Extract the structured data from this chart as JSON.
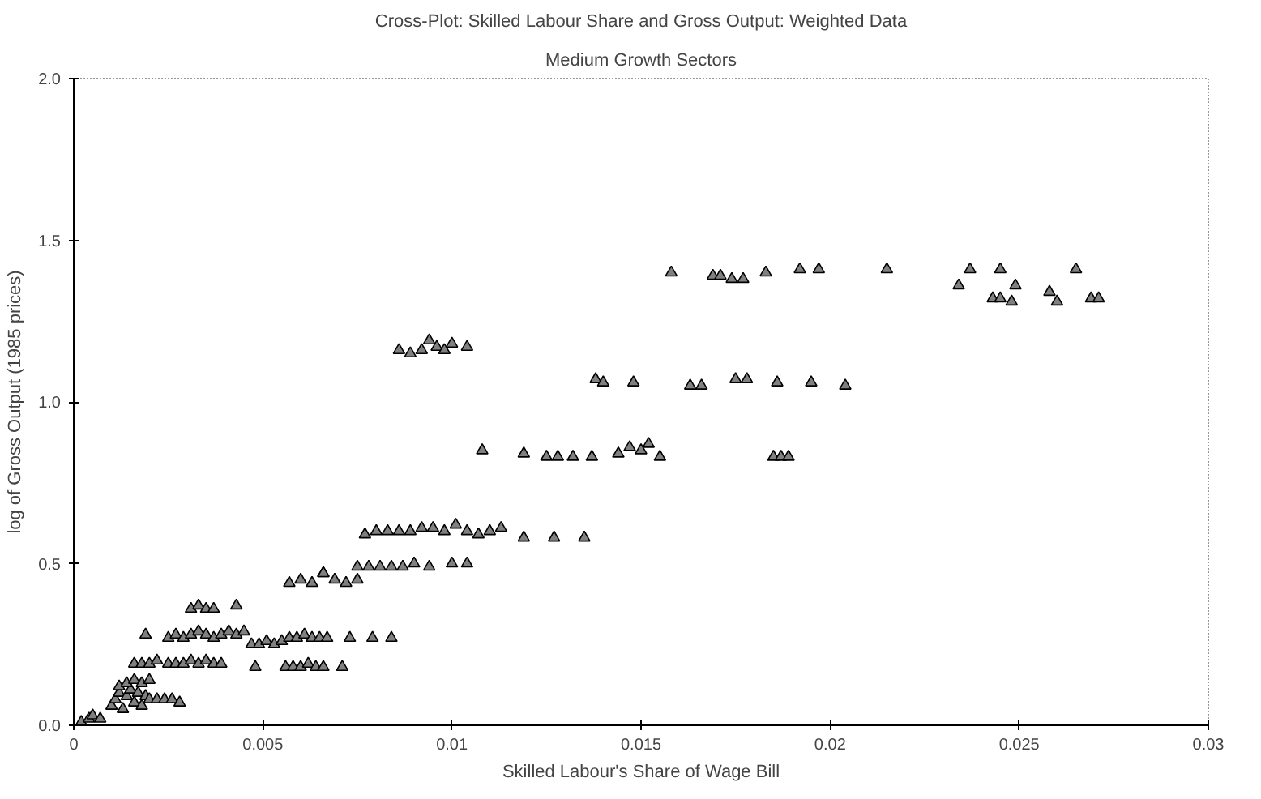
{
  "chart_data": {
    "type": "scatter",
    "title": "Cross-Plot: Skilled Labour Share and Gross Output: Weighted Data",
    "subtitle": "Medium Growth Sectors",
    "xlabel": "Skilled Labour's Share of Wage Bill",
    "ylabel": "log of Gross Output (1985 prices)",
    "xlim": [
      0,
      0.03
    ],
    "ylim": [
      0,
      2.0
    ],
    "xticks": [
      0,
      0.005,
      0.01,
      0.015,
      0.02,
      0.025,
      0.03
    ],
    "yticks": [
      {
        "value": 0,
        "label": "0.0"
      },
      {
        "value": 0.5,
        "label": "0.5"
      },
      {
        "value": 1.0,
        "label": "1.0"
      },
      {
        "value": 1.5,
        "label": "1.5"
      },
      {
        "value": 2.0,
        "label": "2.0"
      }
    ],
    "grid": false,
    "marker": "triangle",
    "series": [
      {
        "color": "#808080",
        "x": [
          0.0002,
          0.0004,
          0.0005,
          0.0007,
          0.001,
          0.0011,
          0.0012,
          0.0013,
          0.0014,
          0.0015,
          0.0016,
          0.0017,
          0.0018,
          0.0019,
          0.002,
          0.0012,
          0.0014,
          0.0016,
          0.0018,
          0.002,
          0.0022,
          0.0024,
          0.0026,
          0.0028,
          0.0016,
          0.0018,
          0.002,
          0.0022,
          0.0025,
          0.0027,
          0.0029,
          0.0031,
          0.0033,
          0.0035,
          0.0037,
          0.0039,
          0.0048,
          0.0056,
          0.0058,
          0.006,
          0.0062,
          0.0064,
          0.0066,
          0.0071,
          0.0019,
          0.0025,
          0.0027,
          0.0029,
          0.0031,
          0.0033,
          0.0035,
          0.0037,
          0.0039,
          0.0041,
          0.0043,
          0.0045,
          0.0047,
          0.0049,
          0.0051,
          0.0053,
          0.0055,
          0.0057,
          0.0059,
          0.0061,
          0.0063,
          0.0065,
          0.0067,
          0.0073,
          0.0079,
          0.0084,
          0.0031,
          0.0033,
          0.0035,
          0.0037,
          0.0043,
          0.0057,
          0.006,
          0.0063,
          0.0066,
          0.0069,
          0.0072,
          0.0075,
          0.0066,
          0.0075,
          0.0078,
          0.0081,
          0.0084,
          0.0087,
          0.009,
          0.0094,
          0.01,
          0.0104,
          0.0077,
          0.008,
          0.0083,
          0.0086,
          0.0089,
          0.0092,
          0.0095,
          0.0098,
          0.0101,
          0.0104,
          0.0107,
          0.011,
          0.0113,
          0.0119,
          0.0127,
          0.0135,
          0.0108,
          0.0119,
          0.0125,
          0.0128,
          0.0132,
          0.0137,
          0.0144,
          0.0147,
          0.015,
          0.0152,
          0.0155,
          0.0185,
          0.0187,
          0.0189,
          0.0138,
          0.014,
          0.0148,
          0.0163,
          0.0166,
          0.0175,
          0.0178,
          0.0186,
          0.0195,
          0.0204,
          0.0086,
          0.0089,
          0.0092,
          0.0094,
          0.0096,
          0.0098,
          0.01,
          0.0104,
          0.0158,
          0.0169,
          0.0171,
          0.0174,
          0.0177,
          0.0183,
          0.0192,
          0.0197,
          0.0215,
          0.0237,
          0.0245,
          0.0265,
          0.0234,
          0.0249,
          0.0243,
          0.0245,
          0.0248,
          0.0258,
          0.026,
          0.0269,
          0.0271
        ],
        "values": [
          0.01,
          0.02,
          0.03,
          0.02,
          0.06,
          0.08,
          0.1,
          0.05,
          0.09,
          0.11,
          0.07,
          0.1,
          0.06,
          0.09,
          0.08,
          0.12,
          0.13,
          0.14,
          0.13,
          0.14,
          0.08,
          0.08,
          0.08,
          0.07,
          0.19,
          0.19,
          0.19,
          0.2,
          0.19,
          0.19,
          0.19,
          0.2,
          0.19,
          0.2,
          0.19,
          0.19,
          0.18,
          0.18,
          0.18,
          0.18,
          0.19,
          0.18,
          0.18,
          0.18,
          0.28,
          0.27,
          0.28,
          0.27,
          0.28,
          0.29,
          0.28,
          0.27,
          0.28,
          0.29,
          0.28,
          0.29,
          0.25,
          0.25,
          0.26,
          0.25,
          0.26,
          0.27,
          0.27,
          0.28,
          0.27,
          0.27,
          0.27,
          0.27,
          0.27,
          0.27,
          0.36,
          0.37,
          0.36,
          0.36,
          0.37,
          0.44,
          0.45,
          0.44,
          0.47,
          0.45,
          0.44,
          0.45,
          0.47,
          0.49,
          0.49,
          0.49,
          0.49,
          0.49,
          0.5,
          0.49,
          0.5,
          0.5,
          0.59,
          0.6,
          0.6,
          0.6,
          0.6,
          0.61,
          0.61,
          0.6,
          0.62,
          0.6,
          0.59,
          0.6,
          0.61,
          0.58,
          0.58,
          0.58,
          0.85,
          0.84,
          0.83,
          0.83,
          0.83,
          0.83,
          0.84,
          0.86,
          0.85,
          0.87,
          0.83,
          0.83,
          0.83,
          0.83,
          1.07,
          1.06,
          1.06,
          1.05,
          1.05,
          1.07,
          1.07,
          1.06,
          1.06,
          1.05,
          1.16,
          1.15,
          1.16,
          1.19,
          1.17,
          1.16,
          1.18,
          1.17,
          1.4,
          1.39,
          1.39,
          1.38,
          1.38,
          1.4,
          1.41,
          1.41,
          1.41,
          1.41,
          1.41,
          1.41,
          1.36,
          1.36,
          1.32,
          1.32,
          1.31,
          1.34,
          1.31,
          1.32,
          1.32
        ]
      }
    ]
  }
}
